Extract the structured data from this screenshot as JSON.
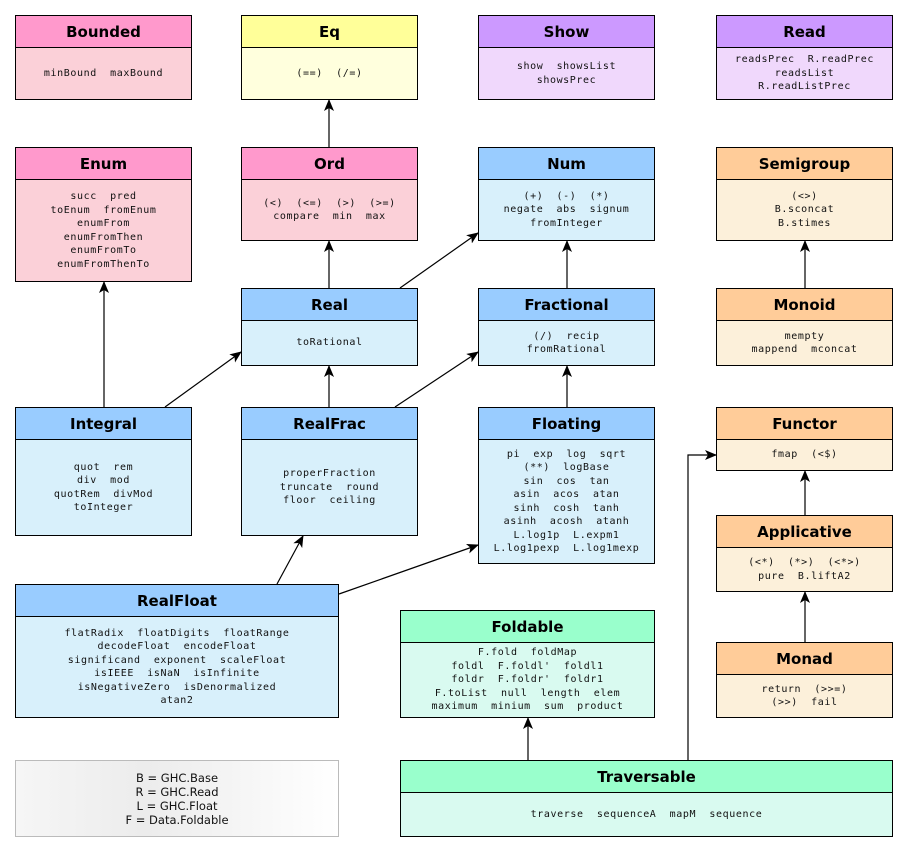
{
  "colors": {
    "pink": {
      "header": "#ff99cc",
      "body": "#fbd0d8"
    },
    "yellow": {
      "header": "#ffff99",
      "body": "#ffffdd"
    },
    "purple": {
      "header": "#cc99ff",
      "body": "#f0d8fc"
    },
    "blue": {
      "header": "#99ccff",
      "body": "#d8f0fb"
    },
    "orange": {
      "header": "#ffcc99",
      "body": "#fcf0da"
    },
    "green": {
      "header": "#99ffcc",
      "body": "#d9faf0"
    }
  },
  "classes": [
    {
      "name": "Bounded",
      "color": "pink",
      "methods": [
        "minBound  maxBound"
      ]
    },
    {
      "name": "Eq",
      "color": "yellow",
      "methods": [
        "(==)  (/=)"
      ]
    },
    {
      "name": "Show",
      "color": "purple",
      "methods": [
        "show  showsList",
        "showsPrec"
      ]
    },
    {
      "name": "Read",
      "color": "purple",
      "methods": [
        "readsPrec  R.readPrec",
        "readsList",
        "R.readListPrec"
      ]
    },
    {
      "name": "Enum",
      "color": "pink",
      "methods": [
        "succ  pred",
        "toEnum  fromEnum",
        "enumFrom",
        "enumFromThen",
        "enumFromTo",
        "enumFromThenTo"
      ]
    },
    {
      "name": "Ord",
      "color": "pink",
      "methods": [
        "(<)  (<=)  (>)  (>=)",
        "compare  min  max"
      ]
    },
    {
      "name": "Num",
      "color": "blue",
      "methods": [
        "(+)  (-)  (*)",
        "negate  abs  signum",
        "fromInteger"
      ]
    },
    {
      "name": "Semigroup",
      "color": "orange",
      "methods": [
        "(<>)",
        "B.sconcat",
        "B.stimes"
      ]
    },
    {
      "name": "Real",
      "color": "blue",
      "methods": [
        "toRational"
      ]
    },
    {
      "name": "Fractional",
      "color": "blue",
      "methods": [
        "(/)  recip",
        "fromRational"
      ]
    },
    {
      "name": "Monoid",
      "color": "orange",
      "methods": [
        "mempty",
        "mappend  mconcat"
      ]
    },
    {
      "name": "Integral",
      "color": "blue",
      "methods": [
        "quot  rem",
        "div  mod",
        "quotRem  divMod",
        "toInteger"
      ]
    },
    {
      "name": "RealFrac",
      "color": "blue",
      "methods": [
        "properFraction",
        "truncate  round",
        "floor  ceiling"
      ]
    },
    {
      "name": "Floating",
      "color": "blue",
      "methods": [
        "pi  exp  log  sqrt",
        "(**)  logBase",
        "sin  cos  tan",
        "asin  acos  atan",
        "sinh  cosh  tanh",
        "asinh  acosh  atanh",
        "L.log1p  L.expm1",
        "L.log1pexp  L.log1mexp"
      ]
    },
    {
      "name": "Functor",
      "color": "orange",
      "methods": [
        "fmap  (<$)"
      ]
    },
    {
      "name": "Applicative",
      "color": "orange",
      "methods": [
        "(<*)  (*>)  (<*>)",
        "pure  B.liftA2"
      ]
    },
    {
      "name": "RealFloat",
      "color": "blue",
      "methods": [
        "flatRadix  floatDigits  floatRange",
        "decodeFloat  encodeFloat",
        "significand  exponent  scaleFloat",
        "isIEEE  isNaN  isInfinite",
        "isNegativeZero  isDenormalized",
        "atan2"
      ]
    },
    {
      "name": "Foldable",
      "color": "green",
      "methods": [
        "F.fold  foldMap",
        "foldl  F.foldl'  foldl1",
        "foldr  F.foldr'  foldr1",
        "F.toList  null  length  elem",
        "maximum  minium  sum  product"
      ]
    },
    {
      "name": "Monad",
      "color": "orange",
      "methods": [
        "return  (>>=)",
        "(>>)  fail"
      ]
    },
    {
      "name": "Traversable",
      "color": "green",
      "methods": [
        "traverse  sequenceA  mapM  sequence"
      ]
    }
  ],
  "edges": [
    [
      "Ord",
      "Eq"
    ],
    [
      "Real",
      "Ord"
    ],
    [
      "Real",
      "Num"
    ],
    [
      "Integral",
      "Enum"
    ],
    [
      "Integral",
      "Real"
    ],
    [
      "RealFrac",
      "Real"
    ],
    [
      "RealFrac",
      "Fractional"
    ],
    [
      "Fractional",
      "Num"
    ],
    [
      "Floating",
      "Fractional"
    ],
    [
      "Monoid",
      "Semigroup"
    ],
    [
      "Applicative",
      "Functor"
    ],
    [
      "Monad",
      "Applicative"
    ],
    [
      "RealFloat",
      "RealFrac"
    ],
    [
      "RealFloat",
      "Floating"
    ],
    [
      "Traversable",
      "Foldable"
    ],
    [
      "Traversable",
      "Functor"
    ]
  ],
  "legend": [
    "B = GHC.Base",
    "R = GHC.Read",
    "L = GHC.Float",
    "F = Data.Foldable"
  ]
}
